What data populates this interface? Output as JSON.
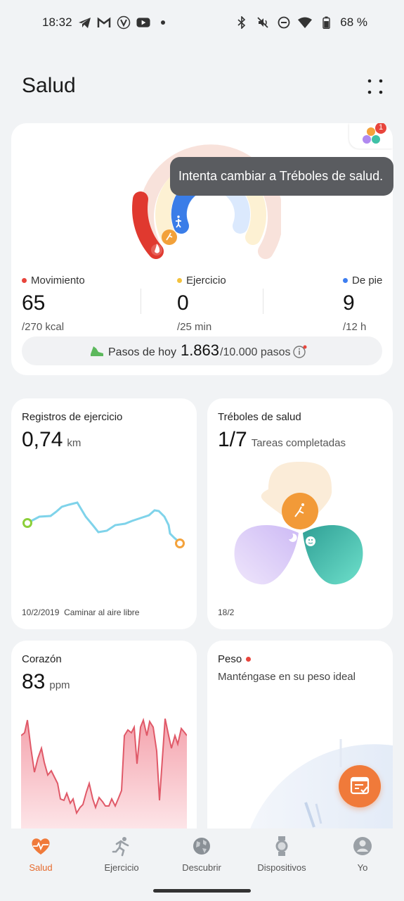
{
  "status_bar": {
    "time": "18:32",
    "battery": "68 %",
    "left_icons": [
      "telegram-icon",
      "gmail-icon",
      "vpn-icon",
      "youtube-icon",
      "dot-icon"
    ],
    "right_icons": [
      "bluetooth-icon",
      "mute-icon",
      "dnd-icon",
      "wifi-icon",
      "battery-icon"
    ]
  },
  "header": {
    "title": "Salud"
  },
  "activity": {
    "tooltip": "Intenta cambiar a Tréboles de salud.",
    "badge_count": "1",
    "move": {
      "label": "Movimiento",
      "value": "65",
      "goal": "/270 kcal",
      "color": "#e8453c"
    },
    "exercise": {
      "label": "Ejercicio",
      "value": "0",
      "goal": "/25 min",
      "color": "#f3c23e"
    },
    "stand": {
      "label": "De pie",
      "value": "9",
      "goal": "/12 h",
      "color": "#3d7ef0"
    },
    "steps": {
      "label": "Pasos de hoy",
      "count": "1.863",
      "goal": "/10.000 pasos"
    }
  },
  "exercise_card": {
    "title": "Registros de ejercicio",
    "value": "0,74",
    "unit": "km",
    "date": "10/2/2019",
    "activity": "Caminar al aire libre"
  },
  "clover_card": {
    "title": "Tréboles de salud",
    "value": "1/7",
    "unit": "Tareas completadas",
    "date": "18/2"
  },
  "heart_card": {
    "title": "Corazón",
    "value": "83",
    "unit": "ppm"
  },
  "weight_card": {
    "title": "Peso",
    "subtitle": "Manténgase en su peso ideal"
  },
  "nav": [
    {
      "label": "Salud",
      "icon": "heart-pulse-icon",
      "active": true
    },
    {
      "label": "Ejercicio",
      "icon": "running-icon",
      "active": false
    },
    {
      "label": "Descubrir",
      "icon": "globe-icon",
      "active": false
    },
    {
      "label": "Dispositivos",
      "icon": "watch-icon",
      "active": false
    },
    {
      "label": "Yo",
      "icon": "user-icon",
      "active": false
    }
  ]
}
